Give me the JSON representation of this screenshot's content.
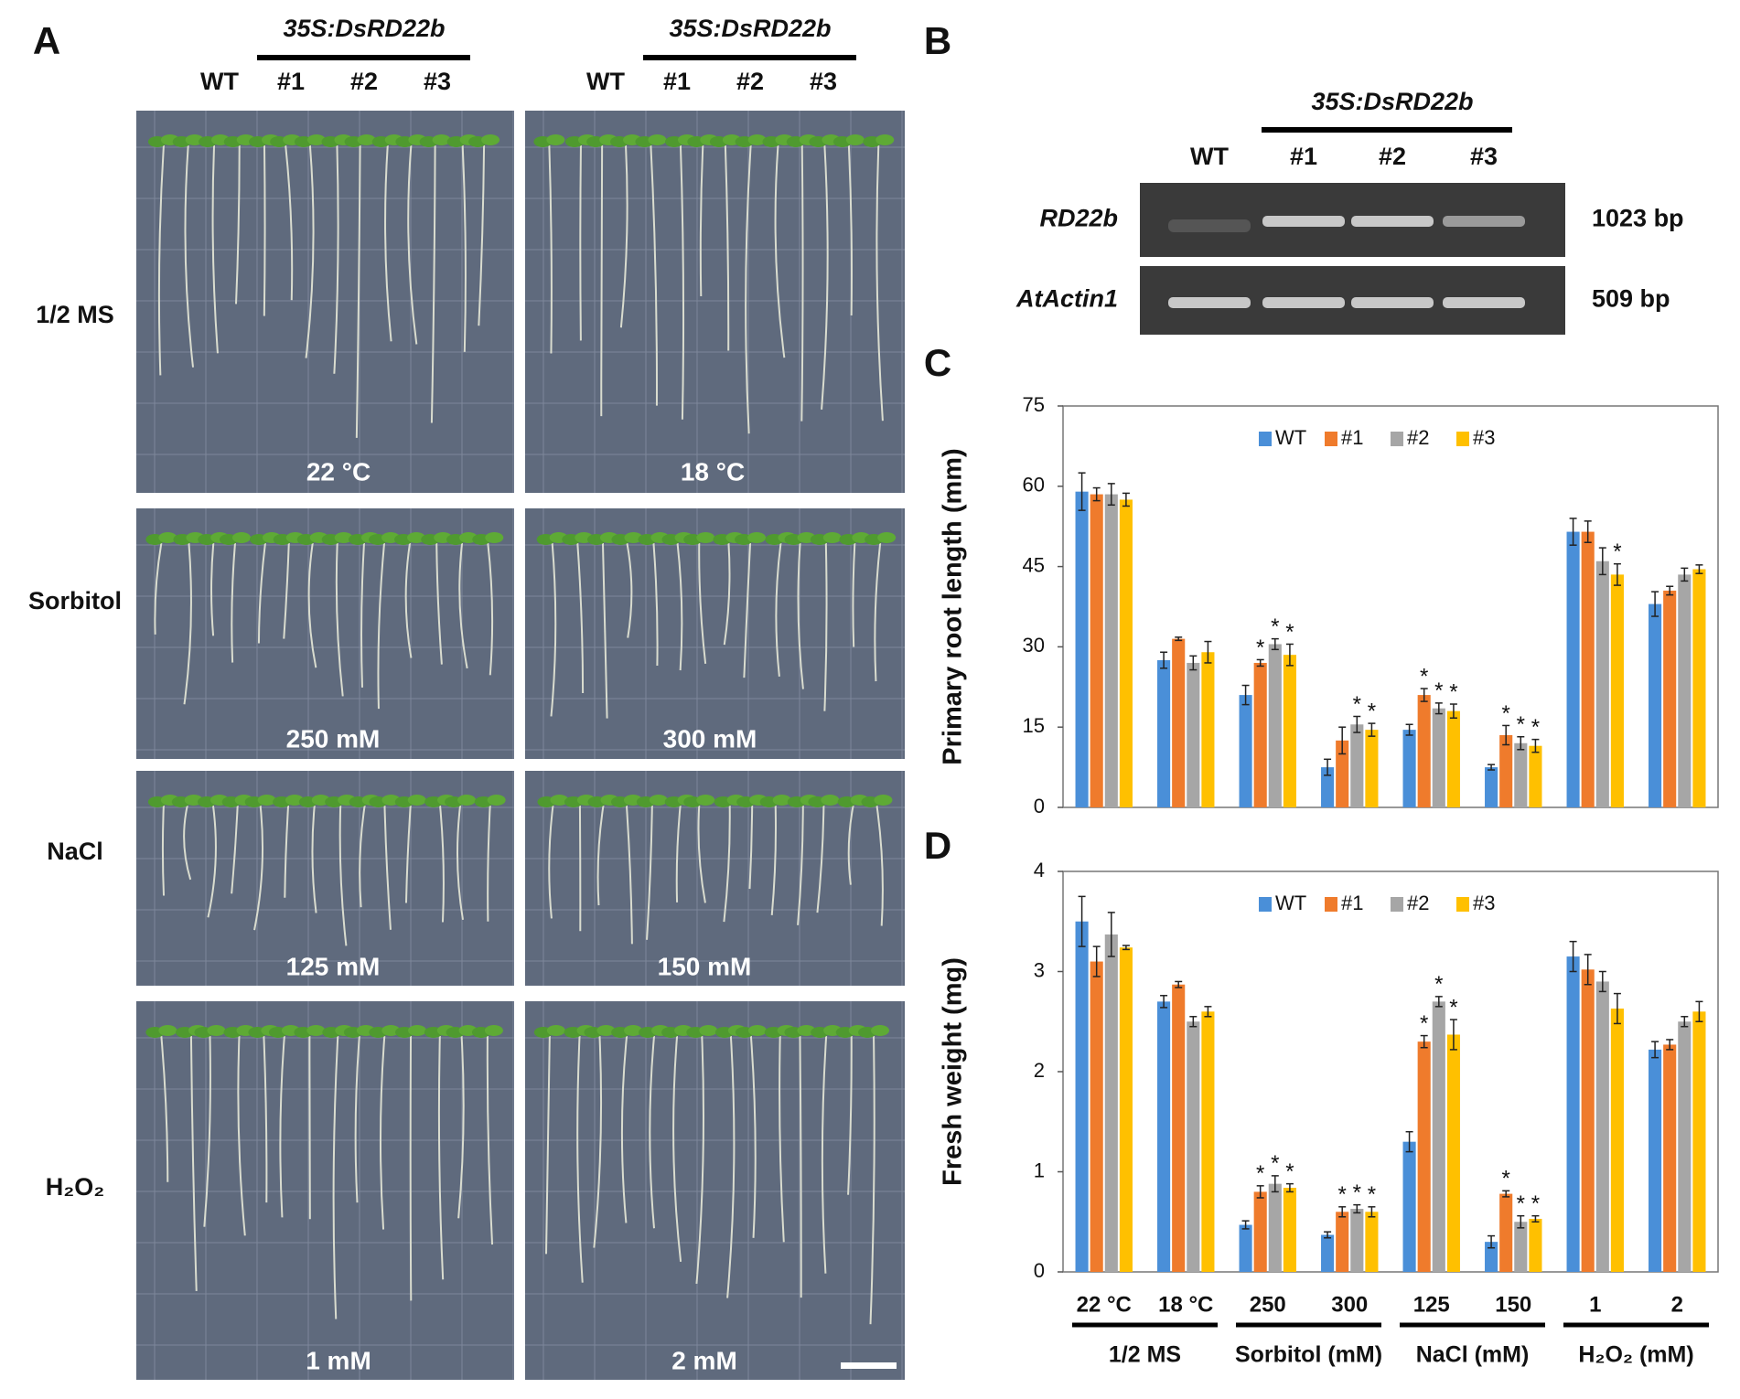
{
  "panel_a": {
    "label": "A",
    "construct_headers": [
      "35S:DsRD22b",
      "35S:DsRD22b"
    ],
    "lane_labels": [
      [
        "WT",
        "#1",
        "#2",
        "#3"
      ],
      [
        "WT",
        "#1",
        "#2",
        "#3"
      ]
    ],
    "treatments": [
      "1/2 MS",
      "Sorbitol",
      "NaCl",
      "H₂O₂"
    ],
    "conditions": [
      [
        "22 °C",
        "18 °C"
      ],
      [
        "250 mM",
        "300 mM"
      ],
      [
        "125 mM",
        "150 mM"
      ],
      [
        "1 mM",
        "2 mM"
      ]
    ]
  },
  "panel_b": {
    "label": "B",
    "construct_header": "35S:DsRD22b",
    "lanes": [
      "WT",
      "#1",
      "#2",
      "#3"
    ],
    "genes": [
      {
        "name": "RD22b",
        "size": "1023 bp"
      },
      {
        "name": "AtActin1",
        "size": "509 bp"
      }
    ]
  },
  "chart_data": [
    {
      "type": "bar",
      "panel_label": "C",
      "y_label": "Primary root length (mm)",
      "ylim": [
        0,
        75
      ],
      "yticks": [
        0,
        15,
        30,
        45,
        60,
        75
      ],
      "series": [
        {
          "name": "WT",
          "color": "#4a8fd8",
          "values": [
            59,
            27.5,
            21,
            7.5,
            14.5,
            7.5,
            51.5,
            38
          ],
          "errors": [
            3.5,
            1.5,
            1.8,
            1.5,
            1,
            0.5,
            2.5,
            2.3
          ],
          "significance": [
            null,
            null,
            null,
            null,
            null,
            null,
            null,
            null
          ]
        },
        {
          "name": "#1",
          "color": "#ef7b2c",
          "values": [
            58.5,
            31.5,
            27,
            12.5,
            21,
            13.5,
            51.5,
            40.5
          ],
          "errors": [
            1.2,
            0.3,
            0.6,
            2.5,
            1.2,
            1.8,
            2,
            0.8
          ],
          "significance": [
            null,
            null,
            "*",
            null,
            "*",
            "*",
            null,
            null
          ]
        },
        {
          "name": "#2",
          "color": "#a6a6a6",
          "values": [
            58.5,
            27,
            30.5,
            15.5,
            18.5,
            12,
            46,
            43.5
          ],
          "errors": [
            2,
            1.3,
            1,
            1.5,
            1,
            1.2,
            2.5,
            1.2
          ],
          "significance": [
            null,
            null,
            "*",
            "*",
            "*",
            "*",
            null,
            null
          ]
        },
        {
          "name": "#3",
          "color": "#ffc000",
          "values": [
            57.5,
            29,
            28.5,
            14.5,
            18,
            11.5,
            43.5,
            44.5
          ],
          "errors": [
            1.2,
            2,
            2,
            1.2,
            1.3,
            1.2,
            2,
            0.8
          ],
          "significance": [
            null,
            null,
            "*",
            "*",
            "*",
            "*",
            "*",
            null
          ]
        }
      ]
    },
    {
      "type": "bar",
      "panel_label": "D",
      "y_label": "Fresh weight (mg)",
      "ylim": [
        0,
        4
      ],
      "yticks": [
        0,
        1,
        2,
        3,
        4
      ],
      "categories": [
        "22 °C",
        "18 °C",
        "250",
        "300",
        "125",
        "150",
        "1",
        "2"
      ],
      "groups": [
        "1/2 MS",
        "Sorbitol (mM)",
        "NaCl (mM)",
        "H₂O₂ (mM)"
      ],
      "series": [
        {
          "name": "WT",
          "color": "#4a8fd8",
          "values": [
            3.5,
            2.7,
            0.47,
            0.37,
            1.3,
            0.3,
            3.15,
            2.22
          ],
          "errors": [
            0.25,
            0.06,
            0.04,
            0.03,
            0.1,
            0.06,
            0.15,
            0.08
          ],
          "significance": [
            null,
            null,
            null,
            null,
            null,
            null,
            null,
            null
          ]
        },
        {
          "name": "#1",
          "color": "#ef7b2c",
          "values": [
            3.1,
            2.87,
            0.8,
            0.6,
            2.3,
            0.78,
            3.02,
            2.27
          ],
          "errors": [
            0.15,
            0.03,
            0.06,
            0.05,
            0.06,
            0.03,
            0.15,
            0.05
          ],
          "significance": [
            null,
            null,
            "*",
            "*",
            "*",
            "*",
            null,
            null
          ]
        },
        {
          "name": "#2",
          "color": "#a6a6a6",
          "values": [
            3.37,
            2.5,
            0.88,
            0.63,
            2.7,
            0.5,
            2.9,
            2.5
          ],
          "errors": [
            0.22,
            0.05,
            0.08,
            0.04,
            0.05,
            0.06,
            0.1,
            0.05
          ],
          "significance": [
            null,
            null,
            "*",
            "*",
            "*",
            "*",
            null,
            null
          ]
        },
        {
          "name": "#3",
          "color": "#ffc000",
          "values": [
            3.24,
            2.6,
            0.84,
            0.6,
            2.37,
            0.53,
            2.63,
            2.6
          ],
          "errors": [
            0.02,
            0.05,
            0.04,
            0.05,
            0.15,
            0.03,
            0.15,
            0.1
          ],
          "significance": [
            null,
            null,
            "*",
            "*",
            "*",
            "*",
            null,
            null
          ]
        }
      ]
    }
  ]
}
